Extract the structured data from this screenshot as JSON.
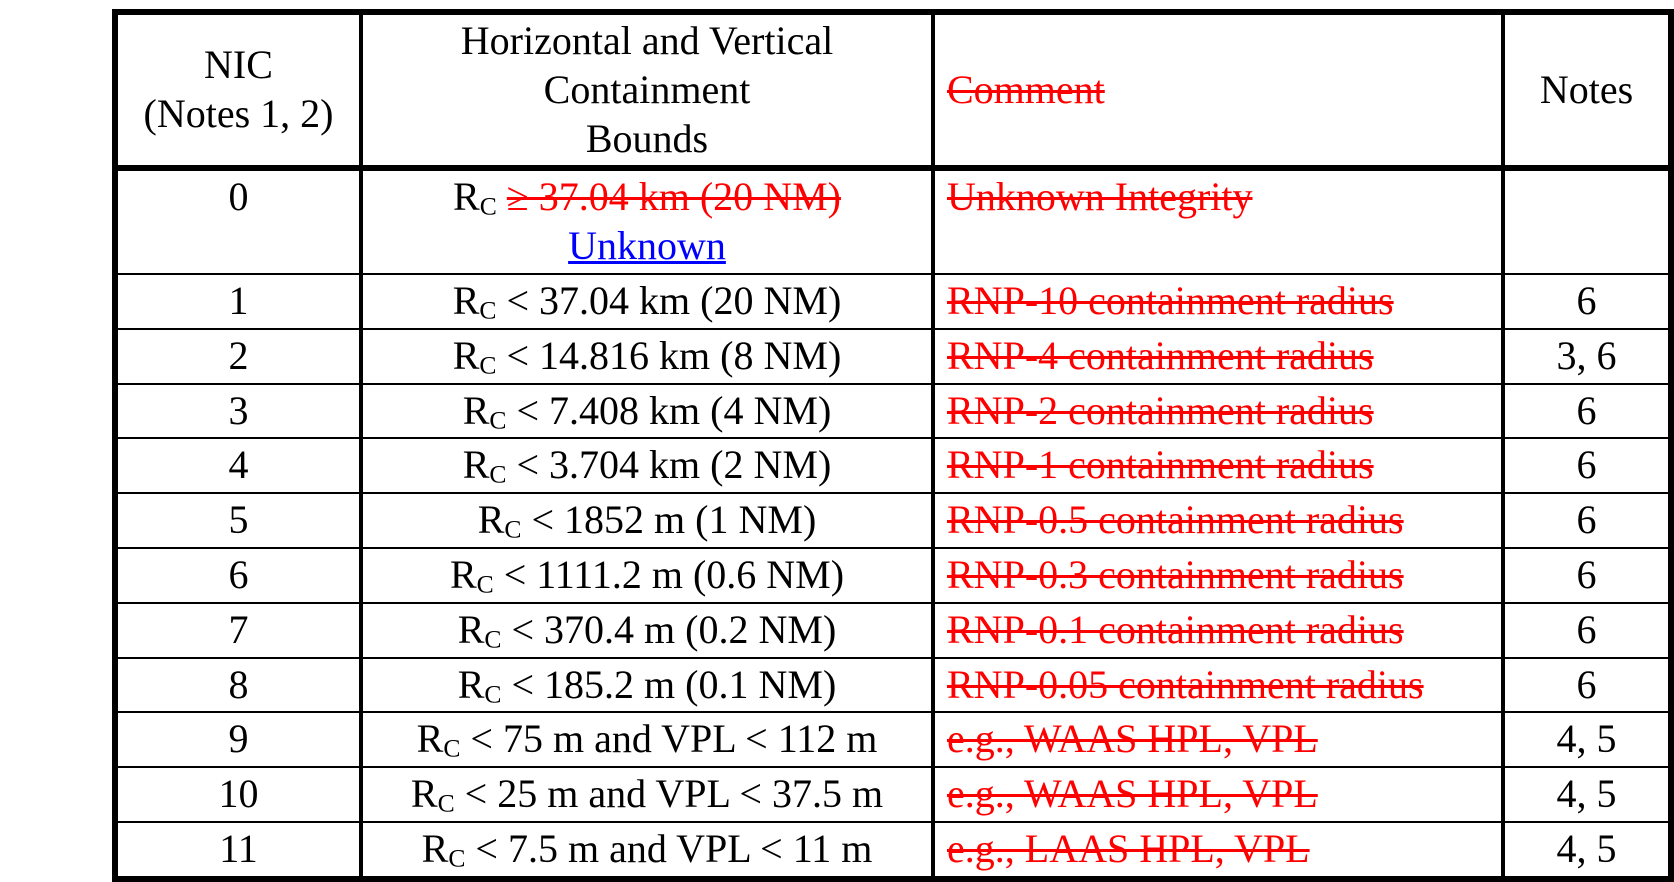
{
  "colors": {
    "text": "#000000",
    "deleted": "#FF0000",
    "inserted": "#0000FF",
    "border": "#000000",
    "background": "#FFFFFF"
  },
  "table": {
    "headers": {
      "nic": [
        "NIC",
        "(Notes 1, 2)"
      ],
      "bounds": [
        "Horizontal and Vertical",
        "Containment",
        "Bounds"
      ],
      "comment": "Comment",
      "comment_deleted": true,
      "notes": "Notes"
    },
    "rows": [
      {
        "nic": "0",
        "bounds": {
          "symbol": "R",
          "subscript": "C",
          "deleted": "≥ 37.04 km (20 NM)",
          "inserted": "Unknown"
        },
        "comment": "Unknown Integrity",
        "notes": "",
        "tall": true
      },
      {
        "nic": "1",
        "bounds": {
          "symbol": "R",
          "subscript": "C",
          "text": "< 37.04 km (20 NM)"
        },
        "comment": "RNP-10 containment radius",
        "notes": "6",
        "tall": false
      },
      {
        "nic": "2",
        "bounds": {
          "symbol": "R",
          "subscript": "C",
          "text": "< 14.816 km (8 NM)"
        },
        "comment": "RNP-4 containment radius",
        "notes": "3, 6",
        "tall": false
      },
      {
        "nic": "3",
        "bounds": {
          "symbol": "R",
          "subscript": "C",
          "text": "< 7.408 km (4 NM)"
        },
        "comment": "RNP-2 containment radius",
        "notes": "6",
        "tall": false
      },
      {
        "nic": "4",
        "bounds": {
          "symbol": "R",
          "subscript": "C",
          "text": "< 3.704 km (2 NM)"
        },
        "comment": "RNP-1 containment radius",
        "notes": "6",
        "tall": false
      },
      {
        "nic": "5",
        "bounds": {
          "symbol": "R",
          "subscript": "C",
          "text": "< 1852 m (1 NM)"
        },
        "comment": "RNP-0.5 containment radius",
        "notes": "6",
        "tall": false
      },
      {
        "nic": "6",
        "bounds": {
          "symbol": "R",
          "subscript": "C",
          "text": "< 1111.2 m (0.6 NM)"
        },
        "comment": "RNP-0.3 containment radius",
        "notes": "6",
        "tall": false
      },
      {
        "nic": "7",
        "bounds": {
          "symbol": "R",
          "subscript": "C",
          "text": "< 370.4 m (0.2 NM)"
        },
        "comment": "RNP-0.1 containment radius",
        "notes": "6",
        "tall": false
      },
      {
        "nic": "8",
        "bounds": {
          "symbol": "R",
          "subscript": "C",
          "text": "< 185.2 m (0.1 NM)"
        },
        "comment": "RNP-0.05 containment radius",
        "notes": "6",
        "tall": false
      },
      {
        "nic": "9",
        "bounds": {
          "symbol": "R",
          "subscript": "C",
          "text": "< 75 m and VPL < 112 m"
        },
        "comment": "e.g., WAAS HPL, VPL",
        "notes": "4, 5",
        "tall": false
      },
      {
        "nic": "10",
        "bounds": {
          "symbol": "R",
          "subscript": "C",
          "text": "< 25 m and VPL < 37.5 m"
        },
        "comment": "e.g., WAAS HPL, VPL",
        "notes": "4, 5",
        "tall": false
      },
      {
        "nic": "11",
        "bounds": {
          "symbol": "R",
          "subscript": "C",
          "text": "< 7.5 m and VPL < 11 m"
        },
        "comment": "e.g., LAAS HPL, VPL",
        "notes": "4, 5",
        "tall": false
      }
    ]
  }
}
